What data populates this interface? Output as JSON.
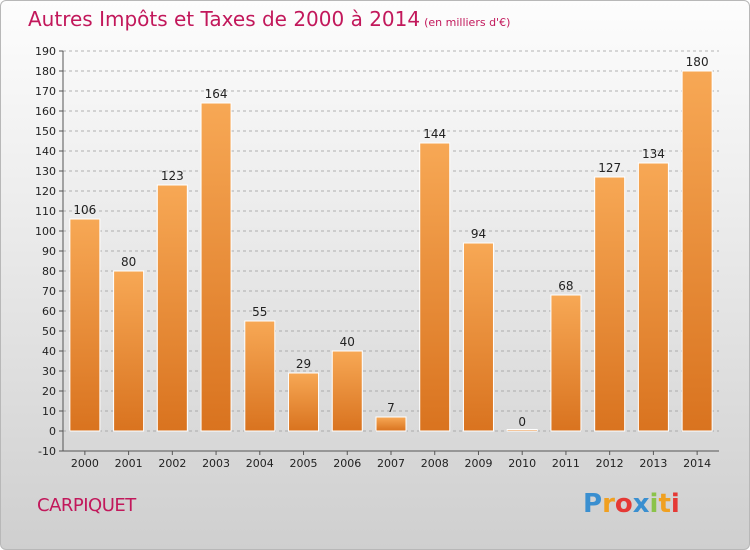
{
  "header": {
    "title": "Autres Impôts et Taxes de 2000 à 2014",
    "subtitle": "(en milliers d'€)"
  },
  "footer": {
    "commune": "CARPIQUET",
    "brand_letters": [
      "P",
      "r",
      "o",
      "x",
      "i",
      "t",
      "i"
    ],
    "brand_colors": [
      "#3a8fd0",
      "#f0a020",
      "#e53935",
      "#3a8fd0",
      "#8bc34a",
      "#f0a020",
      "#e53935"
    ]
  },
  "colors": {
    "title": "#c2185b",
    "bar_light": "#f7a855",
    "bar_dark": "#d9731f",
    "bar_edge": "#ffffff",
    "grid": "#9a9a9a",
    "axis": "#555555",
    "text": "#222222"
  },
  "chart_data": {
    "type": "bar",
    "title": "Autres Impôts et Taxes de 2000 à 2014",
    "subtitle": "(en milliers d'€)",
    "xlabel": "",
    "ylabel": "",
    "categories": [
      "2000",
      "2001",
      "2002",
      "2003",
      "2004",
      "2005",
      "2006",
      "2007",
      "2008",
      "2009",
      "2010",
      "2011",
      "2012",
      "2013",
      "2014"
    ],
    "values": [
      106,
      80,
      123,
      164,
      55,
      29,
      40,
      7,
      144,
      94,
      0,
      68,
      127,
      134,
      180
    ],
    "ylim": [
      -10,
      190
    ],
    "ytick_step": 10,
    "grid": true,
    "grid_style": "dashed horizontal",
    "data_labels": true,
    "legend": "none"
  }
}
